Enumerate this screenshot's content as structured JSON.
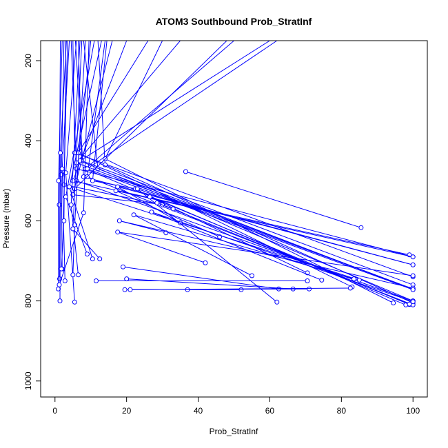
{
  "chart_data": {
    "type": "line",
    "title": "ATOM3 Southbound Prob_StratInf",
    "xlabel": "Prob_StratInf",
    "ylabel": "Pressure (mbar)",
    "xlim": [
      -4,
      104
    ],
    "ylim": [
      1040,
      150
    ],
    "y_reversed": true,
    "grid": false,
    "legend": "none",
    "color": "#0000ff",
    "x_ticks": [
      0,
      20,
      40,
      60,
      80,
      100
    ],
    "y_ticks": [
      200,
      400,
      600,
      800,
      1000
    ],
    "series": [
      {
        "points": [
          [
            5.7,
            150
          ],
          [
            8.0,
            490
          ],
          [
            100,
            710
          ]
        ]
      },
      {
        "points": [
          [
            4.5,
            150
          ],
          [
            6.0,
            470
          ],
          [
            100,
            690
          ]
        ]
      },
      {
        "points": [
          [
            5.0,
            150
          ],
          [
            5.5,
            430
          ],
          [
            100,
            740
          ]
        ]
      },
      {
        "points": [
          [
            6.5,
            150
          ],
          [
            7.5,
            450
          ],
          [
            100,
            760
          ]
        ]
      },
      {
        "points": [
          [
            8.0,
            150
          ],
          [
            12.0,
            470
          ],
          [
            100,
            772
          ]
        ]
      },
      {
        "points": [
          [
            10.0,
            150
          ],
          [
            6.0,
            500
          ],
          [
            100,
            800
          ]
        ]
      },
      {
        "points": [
          [
            12.0,
            150
          ],
          [
            14.0,
            460
          ],
          [
            100,
            805
          ]
        ]
      },
      {
        "points": [
          [
            14.0,
            150
          ],
          [
            9.0,
            490
          ],
          [
            100,
            810
          ]
        ]
      },
      {
        "points": [
          [
            20.0,
            150
          ],
          [
            5.0,
            500
          ],
          [
            99,
            685
          ]
        ]
      },
      {
        "points": [
          [
            35.0,
            150
          ],
          [
            6.0,
            455
          ],
          [
            100,
            770
          ]
        ]
      },
      {
        "points": [
          [
            50.0,
            150
          ],
          [
            8.5,
            470
          ],
          [
            98,
            810
          ]
        ]
      },
      {
        "points": [
          [
            30.0,
            150
          ],
          [
            14.0,
            445
          ],
          [
            94.5,
            805
          ]
        ]
      },
      {
        "points": [
          [
            60.0,
            150
          ],
          [
            7.0,
            450
          ],
          [
            100,
            800
          ]
        ]
      },
      {
        "points": [
          [
            48.0,
            150
          ],
          [
            5.5,
            520
          ],
          [
            85,
            748
          ]
        ]
      },
      {
        "points": [
          [
            26.0,
            150
          ],
          [
            6.5,
            430
          ],
          [
            83,
            765
          ]
        ]
      },
      {
        "points": [
          [
            62.0,
            150
          ],
          [
            9.0,
            470
          ],
          [
            100,
            770
          ]
        ]
      },
      {
        "points": [
          [
            3.5,
            150
          ],
          [
            2.5,
            510
          ],
          [
            30,
            560
          ]
        ]
      },
      {
        "points": [
          [
            14.5,
            150
          ],
          [
            10.5,
            500
          ],
          [
            22.5,
            520
          ]
        ]
      },
      {
        "points": [
          [
            16.0,
            150
          ],
          [
            5.0,
            535
          ],
          [
            29,
            558
          ]
        ]
      },
      {
        "points": [
          [
            2.5,
            150
          ],
          [
            1.8,
            485
          ],
          [
            2.0,
            720
          ]
        ]
      },
      {
        "points": [
          [
            1.5,
            150
          ],
          [
            1.2,
            560
          ],
          [
            1.3,
            745
          ]
        ]
      },
      {
        "points": [
          [
            2.0,
            150
          ],
          [
            1.0,
            500
          ],
          [
            0.9,
            770
          ]
        ]
      },
      {
        "points": [
          [
            3.2,
            150
          ],
          [
            1.5,
            430
          ],
          [
            1.4,
            800
          ]
        ]
      },
      {
        "points": [
          [
            4.0,
            150
          ],
          [
            2.0,
            470
          ],
          [
            2.8,
            750
          ]
        ]
      },
      {
        "points": [
          [
            6.0,
            150
          ],
          [
            3.0,
            480
          ],
          [
            5.5,
            803
          ]
        ]
      },
      {
        "points": [
          [
            7.0,
            150
          ],
          [
            4.5,
            560
          ],
          [
            6.5,
            735
          ]
        ]
      },
      {
        "points": [
          [
            3.0,
            150
          ],
          [
            2.5,
            600
          ],
          [
            1.8,
            720
          ]
        ]
      },
      {
        "points": [
          [
            9.5,
            150
          ],
          [
            8.0,
            580
          ],
          [
            1.2,
            760
          ]
        ]
      },
      {
        "points": [
          [
            8.5,
            150
          ],
          [
            5.5,
            610
          ],
          [
            5.0,
            735
          ]
        ]
      },
      {
        "points": [
          [
            11.0,
            150
          ],
          [
            3.0,
            540
          ],
          [
            9.0,
            683
          ]
        ]
      },
      {
        "points": [
          [
            13.0,
            150
          ],
          [
            4.0,
            515
          ],
          [
            10.5,
            695
          ]
        ]
      },
      {
        "points": [
          [
            7.5,
            150
          ],
          [
            5.0,
            620
          ],
          [
            12.5,
            695
          ]
        ]
      },
      {
        "points": [
          [
            36.5,
            477
          ],
          [
            85.5,
            617
          ]
        ]
      },
      {
        "points": [
          [
            35.0,
            605
          ],
          [
            17.5,
            515
          ],
          [
            100,
            710
          ]
        ]
      },
      {
        "points": [
          [
            46.0,
            640
          ],
          [
            17.0,
            525
          ],
          [
            100,
            690
          ]
        ]
      },
      {
        "points": [
          [
            42.0,
            705
          ],
          [
            17.5,
            628
          ],
          [
            100,
            737
          ]
        ]
      },
      {
        "points": [
          [
            31.0,
            630
          ],
          [
            18.0,
            600
          ],
          [
            100,
            768
          ]
        ]
      },
      {
        "points": [
          [
            62.0,
            803
          ],
          [
            23.0,
            520
          ],
          [
            100,
            772
          ]
        ]
      },
      {
        "points": [
          [
            70.5,
            730
          ],
          [
            26.5,
            540
          ],
          [
            99,
            809
          ]
        ]
      },
      {
        "points": [
          [
            74.5,
            748
          ],
          [
            27.0,
            578
          ],
          [
            100,
            802
          ]
        ]
      },
      {
        "points": [
          [
            55.0,
            737
          ],
          [
            22.0,
            585
          ],
          [
            83.5,
            745
          ]
        ]
      },
      {
        "points": [
          [
            33.0,
            570
          ],
          [
            28.5,
            555
          ],
          [
            99,
            808
          ]
        ]
      },
      {
        "points": [
          [
            37.0,
            772
          ],
          [
            52.0,
            772
          ]
        ]
      },
      {
        "points": [
          [
            11.5,
            750
          ],
          [
            70.5,
            750
          ]
        ]
      },
      {
        "points": [
          [
            19.0,
            715
          ],
          [
            62.5,
            770
          ]
        ]
      },
      {
        "points": [
          [
            20.0,
            745
          ],
          [
            66.5,
            770
          ]
        ]
      },
      {
        "points": [
          [
            19.5,
            772
          ],
          [
            71.0,
            770
          ]
        ]
      },
      {
        "points": [
          [
            21.0,
            772
          ],
          [
            82.5,
            768
          ]
        ]
      }
    ]
  }
}
